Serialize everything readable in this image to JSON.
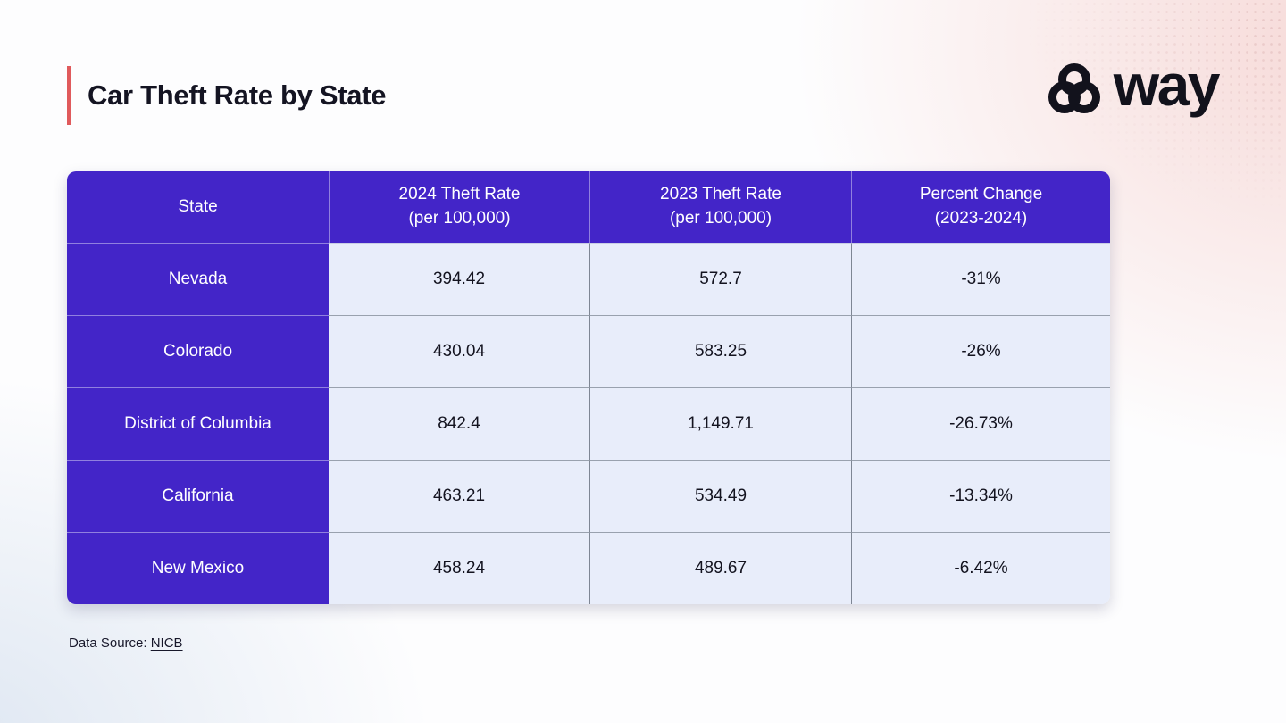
{
  "page": {
    "title": "Car Theft Rate by State"
  },
  "logo": {
    "brand": "way"
  },
  "colors": {
    "accent_red": "#E05A5C",
    "header_purple": "#4325C8",
    "cell_light": "#E8EDFA",
    "ink": "#12121C"
  },
  "table": {
    "columns": [
      {
        "line1": "State",
        "line2": ""
      },
      {
        "line1": "2024 Theft Rate",
        "line2": "(per 100,000)"
      },
      {
        "line1": "2023 Theft Rate",
        "line2": "(per 100,000)"
      },
      {
        "line1": "Percent Change",
        "line2": "(2023-2024)"
      }
    ],
    "rows": [
      {
        "state": "Nevada",
        "rate_2024": "394.42",
        "rate_2023": "572.7",
        "percent_change": "-31%"
      },
      {
        "state": "Colorado",
        "rate_2024": "430.04",
        "rate_2023": "583.25",
        "percent_change": "-26%"
      },
      {
        "state": "District of Columbia",
        "rate_2024": "842.4",
        "rate_2023": "1,149.71",
        "percent_change": "-26.73%"
      },
      {
        "state": "California",
        "rate_2024": "463.21",
        "rate_2023": "534.49",
        "percent_change": "-13.34%"
      },
      {
        "state": "New Mexico",
        "rate_2024": "458.24",
        "rate_2023": "489.67",
        "percent_change": "-6.42%"
      }
    ]
  },
  "footer": {
    "label": "Data Source:",
    "link_text": "NICB"
  },
  "chart_data": {
    "type": "table",
    "title": "Car Theft Rate by State",
    "columns": [
      "State",
      "2024 Theft Rate (per 100,000)",
      "2023 Theft Rate (per 100,000)",
      "Percent Change (2023-2024)"
    ],
    "rows": [
      [
        "Nevada",
        394.42,
        572.7,
        "-31%"
      ],
      [
        "Colorado",
        430.04,
        583.25,
        "-26%"
      ],
      [
        "District of Columbia",
        842.4,
        1149.71,
        "-26.73%"
      ],
      [
        "California",
        463.21,
        534.49,
        "-13.34%"
      ],
      [
        "New Mexico",
        458.24,
        489.67,
        "-6.42%"
      ]
    ],
    "source": "NICB"
  }
}
